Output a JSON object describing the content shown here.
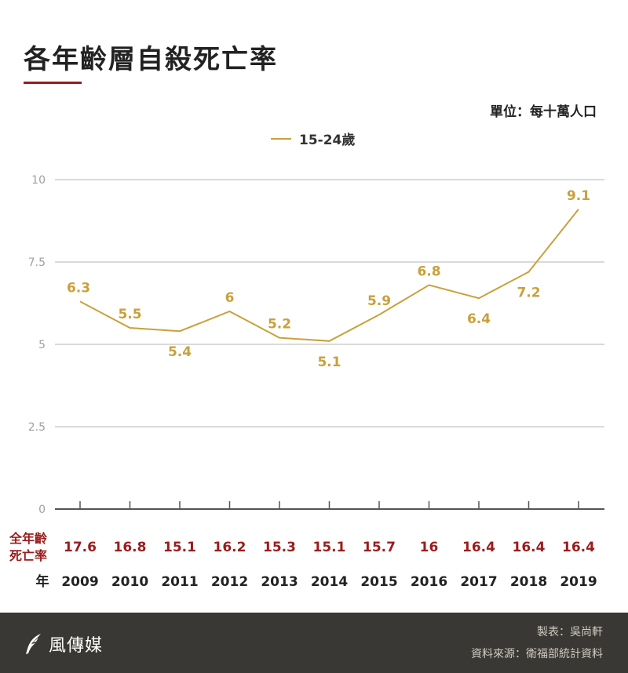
{
  "header": {
    "title": "各年齡層自殺死亡率",
    "unit": "單位：每十萬人口"
  },
  "colors": {
    "series": "#c9a13b",
    "all_age": "#9b1c1c",
    "grid": "#b5b5b5",
    "axis": "#555555",
    "footer_bg": "#3a3834"
  },
  "chart_data": {
    "type": "line",
    "x": [
      "2009",
      "2010",
      "2011",
      "2012",
      "2013",
      "2014",
      "2015",
      "2016",
      "2017",
      "2018",
      "2019"
    ],
    "series": [
      {
        "name": "15-24歲",
        "values": [
          6.3,
          5.5,
          5.4,
          6,
          5.2,
          5.1,
          5.9,
          6.8,
          6.4,
          7.2,
          9.1
        ]
      }
    ],
    "data_labels": [
      "6.3",
      "5.5",
      "5.4",
      "6",
      "5.2",
      "5.1",
      "5.9",
      "6.8",
      "6.4",
      "7.2",
      "9.1"
    ],
    "ylim": [
      0,
      10
    ],
    "y_ticks": [
      "0",
      "2.5",
      "5",
      "7.5",
      "10"
    ],
    "grid": true,
    "legend_position": "top-center",
    "all_age_row": {
      "label_line1": "全年齡",
      "label_line2": "死亡率",
      "values": [
        "17.6",
        "16.8",
        "15.1",
        "16.2",
        "15.3",
        "15.1",
        "15.7",
        "16",
        "16.4",
        "16.4",
        "16.4"
      ]
    },
    "year_row_label": "年"
  },
  "footer": {
    "logo_text": "風傳媒",
    "logo_icon": "feather-icon",
    "credit_maker": "製表：吳尚軒",
    "credit_source": "資料來源：衛福部統計資料"
  }
}
